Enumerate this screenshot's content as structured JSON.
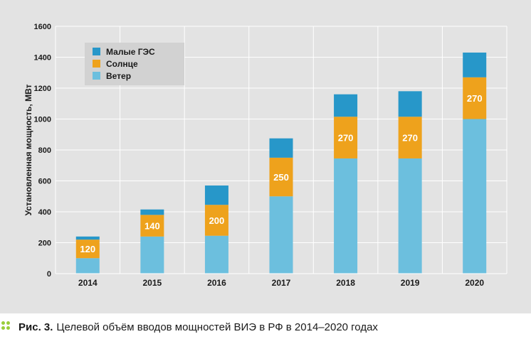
{
  "chart_data": {
    "type": "bar",
    "stacked": true,
    "categories": [
      "2014",
      "2015",
      "2016",
      "2017",
      "2018",
      "2019",
      "2020"
    ],
    "series": [
      {
        "name": "Ветер",
        "color": "#6cbfde",
        "values": [
          100,
          240,
          245,
          500,
          745,
          745,
          1000
        ]
      },
      {
        "name": "Солнце",
        "color": "#eea21c",
        "values": [
          120,
          140,
          200,
          250,
          270,
          270,
          270
        ]
      },
      {
        "name": "Малые ГЭС",
        "color": "#2797c9",
        "values": [
          20,
          35,
          125,
          125,
          145,
          165,
          160
        ]
      }
    ],
    "data_labels": [
      "120",
      "140",
      "200",
      "250",
      "270",
      "270",
      "270"
    ],
    "ylabel": "Установленная мощность, МВт",
    "ylim": [
      0,
      1600
    ],
    "yticks": [
      "0",
      "200",
      "400",
      "600",
      "800",
      "1000",
      "1200",
      "1400",
      "1600"
    ],
    "legend": [
      "Малые ГЭС",
      "Солнце",
      "Ветер"
    ],
    "legend_position": "top-left",
    "grid": true
  },
  "caption": {
    "label": "Рис. 3.",
    "text": "Целевой объём вводов мощностей ВИЭ в РФ в 2014–2020 годах",
    "icon": "dots-icon"
  }
}
